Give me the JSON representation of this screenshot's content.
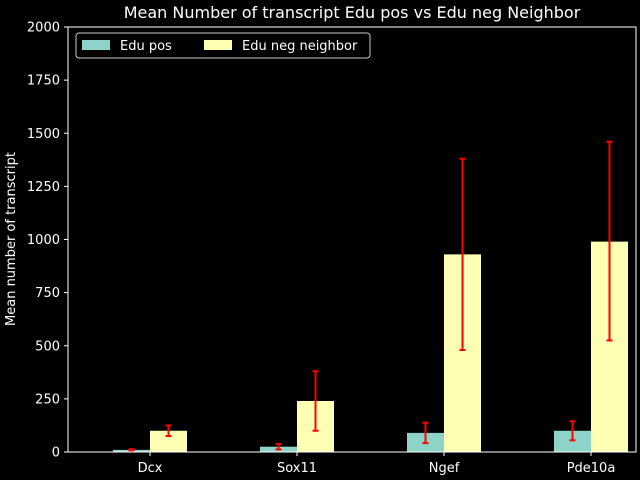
{
  "chart_data": {
    "type": "bar",
    "title": "Mean Number of transcript Edu pos vs Edu neg Neighbor",
    "xlabel": "",
    "ylabel": "Mean number of transcript",
    "categories": [
      "Dcx",
      "Sox11",
      "Ngef",
      "Pde10a"
    ],
    "ylim": [
      0,
      2000
    ],
    "yticks": [
      0,
      250,
      500,
      750,
      1000,
      1250,
      1500,
      1750,
      2000
    ],
    "ytick_labels": [
      "0",
      "250",
      "500",
      "750",
      "1000",
      "1250",
      "1500",
      "1750",
      "2000"
    ],
    "series": [
      {
        "name": "Edu pos",
        "color": "#8dd3c7",
        "values": [
          10,
          25,
          90,
          100
        ],
        "err_low": [
          7,
          12,
          42,
          55
        ],
        "err_high": [
          13,
          38,
          138,
          145
        ]
      },
      {
        "name": "Edu neg neighbor",
        "color": "#ffffb3",
        "values": [
          100,
          240,
          930,
          990
        ],
        "err_low": [
          75,
          100,
          480,
          525
        ],
        "err_high": [
          125,
          380,
          1380,
          1460
        ]
      }
    ],
    "error_bar_color": "#ff0000",
    "grid": false,
    "legend_position": "top-left",
    "background": "#000000",
    "foreground": "#ffffff"
  }
}
